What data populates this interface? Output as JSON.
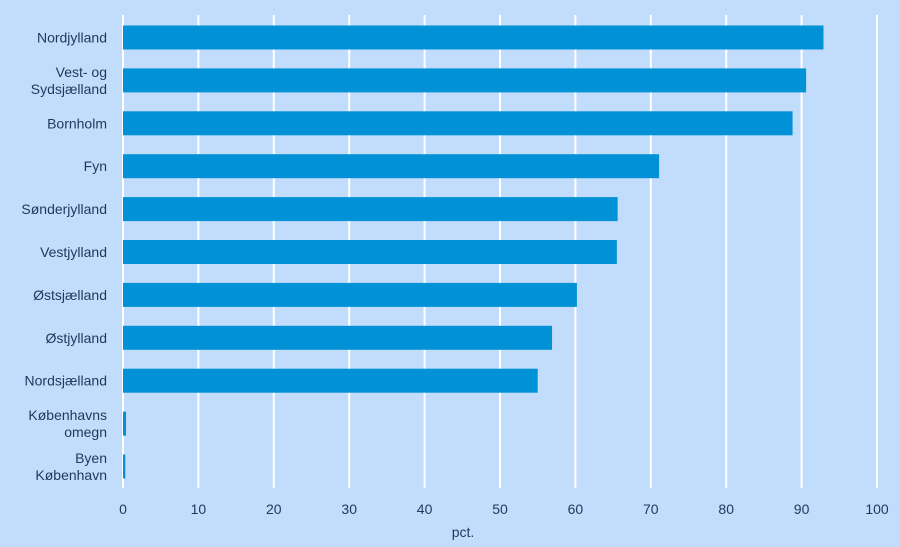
{
  "chart_data": {
    "type": "bar",
    "orientation": "horizontal",
    "categories": [
      [
        "Nordjylland"
      ],
      [
        "Vest- og",
        "Sydsjælland"
      ],
      [
        "Bornholm"
      ],
      [
        "Fyn"
      ],
      [
        "Sønderjylland"
      ],
      [
        "Vestjylland"
      ],
      [
        "Østsjælland"
      ],
      [
        "Østjylland"
      ],
      [
        "Nordsjælland"
      ],
      [
        "Københavns",
        "omegn"
      ],
      [
        "Byen",
        "København"
      ]
    ],
    "values": [
      92.9,
      90.6,
      88.8,
      71.1,
      65.6,
      65.5,
      60.2,
      56.9,
      55.0,
      0.4,
      0.3
    ],
    "xlabel": "pct.",
    "ylabel": "",
    "xlim": [
      0,
      100
    ],
    "xticks": [
      0,
      10,
      20,
      30,
      40,
      50,
      60,
      70,
      80,
      90,
      100
    ],
    "grid": "vertical",
    "legend": "none",
    "colors": {
      "background": "#c2ddfb",
      "bar": "#0091d6",
      "grid": "#ffffff",
      "text": "#1b3a5c"
    }
  }
}
